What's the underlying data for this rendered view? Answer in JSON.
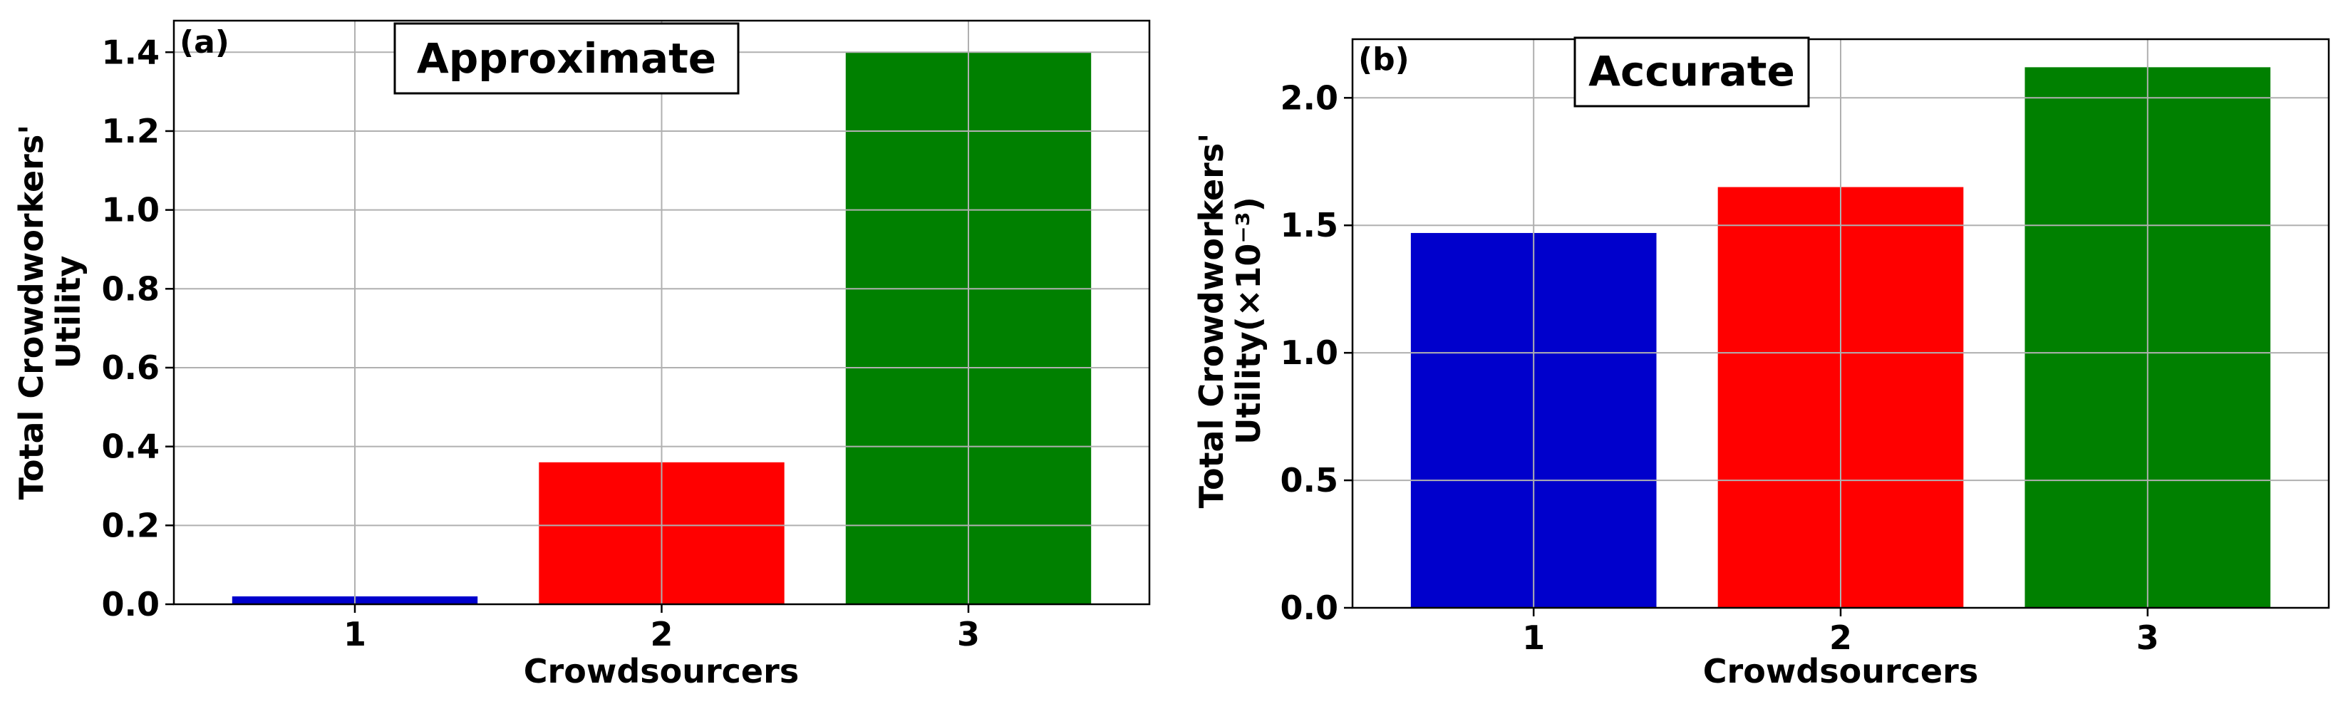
{
  "chart_data": [
    {
      "type": "bar",
      "panel_label": "(a)",
      "title": "Approximate",
      "xlabel": "Crowdsourcers",
      "ylabel_lines": [
        "Total Crowdworkers'",
        "Utility"
      ],
      "categories": [
        "1",
        "2",
        "3"
      ],
      "values": [
        0.02,
        0.36,
        1.4
      ],
      "colors": [
        "#0000cc",
        "#ff0000",
        "#008000"
      ],
      "ylim": [
        0,
        1.48
      ],
      "yticks": [
        0.0,
        0.2,
        0.4,
        0.6,
        0.8,
        1.0,
        1.2,
        1.4
      ],
      "ytick_labels": [
        "0.0",
        "0.2",
        "0.4",
        "0.6",
        "0.8",
        "1.0",
        "1.2",
        "1.4"
      ],
      "grid": true
    },
    {
      "type": "bar",
      "panel_label": "(b)",
      "title": "Accurate",
      "xlabel": "Crowdsourcers",
      "ylabel_lines": [
        "Total Crowdworkers'",
        "Utility(×10⁻³)"
      ],
      "categories": [
        "1",
        "2",
        "3"
      ],
      "values": [
        1.47,
        1.65,
        2.12
      ],
      "colors": [
        "#0000cc",
        "#ff0000",
        "#008000"
      ],
      "ylim": [
        0,
        2.23
      ],
      "yticks": [
        0.0,
        0.5,
        1.0,
        1.5,
        2.0
      ],
      "ytick_labels": [
        "0.0",
        "0.5",
        "1.0",
        "1.5",
        "2.0"
      ],
      "grid": true
    }
  ]
}
